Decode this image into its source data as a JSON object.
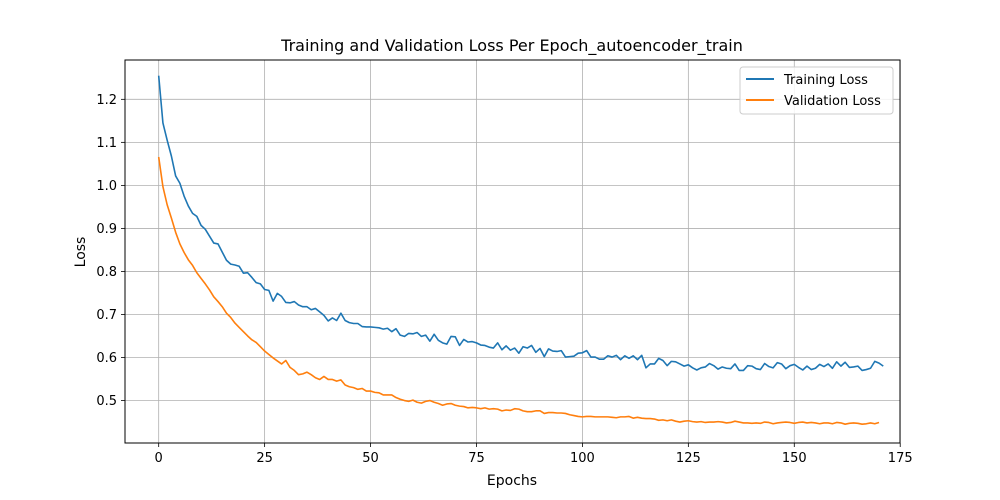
{
  "colors": {
    "training": "#1f77b4",
    "validation": "#ff7f0e",
    "grid": "#b0b0b0"
  },
  "chart_data": {
    "type": "line",
    "title": "Training and Validation Loss Per Epoch_autoencoder_train",
    "xlabel": "Epochs",
    "ylabel": "Loss",
    "xlim": [
      -7.95,
      174.95
    ],
    "ylim": [
      0.4013,
      1.2914
    ],
    "xticks": [
      0,
      25,
      50,
      75,
      100,
      125,
      150,
      175
    ],
    "yticks": [
      0.5,
      0.6,
      0.7,
      0.8,
      0.9,
      1.0,
      1.1,
      1.2
    ],
    "grid": true,
    "legend_position": "top-right",
    "series": [
      {
        "name": "Training Loss",
        "color": "#1f77b4",
        "values": [
          1.255,
          1.145,
          1.105,
          1.068,
          1.022,
          1.005,
          0.975,
          0.952,
          0.935,
          0.928,
          0.907,
          0.898,
          0.882,
          0.866,
          0.864,
          0.845,
          0.826,
          0.817,
          0.815,
          0.812,
          0.796,
          0.797,
          0.786,
          0.774,
          0.771,
          0.758,
          0.756,
          0.731,
          0.749,
          0.742,
          0.728,
          0.727,
          0.73,
          0.722,
          0.718,
          0.718,
          0.711,
          0.714,
          0.706,
          0.698,
          0.685,
          0.692,
          0.686,
          0.703,
          0.686,
          0.681,
          0.679,
          0.679,
          0.672,
          0.671,
          0.671,
          0.67,
          0.669,
          0.666,
          0.668,
          0.66,
          0.667,
          0.652,
          0.649,
          0.656,
          0.655,
          0.658,
          0.649,
          0.652,
          0.638,
          0.654,
          0.64,
          0.634,
          0.631,
          0.649,
          0.648,
          0.628,
          0.642,
          0.636,
          0.637,
          0.634,
          0.629,
          0.628,
          0.624,
          0.622,
          0.634,
          0.618,
          0.627,
          0.617,
          0.622,
          0.61,
          0.625,
          0.622,
          0.628,
          0.612,
          0.621,
          0.602,
          0.62,
          0.615,
          0.614,
          0.616,
          0.601,
          0.602,
          0.603,
          0.61,
          0.611,
          0.616,
          0.601,
          0.601,
          0.596,
          0.596,
          0.604,
          0.601,
          0.605,
          0.595,
          0.604,
          0.598,
          0.604,
          0.595,
          0.605,
          0.576,
          0.585,
          0.585,
          0.598,
          0.593,
          0.581,
          0.591,
          0.59,
          0.585,
          0.58,
          0.583,
          0.576,
          0.571,
          0.576,
          0.578,
          0.586,
          0.581,
          0.573,
          0.578,
          0.575,
          0.574,
          0.585,
          0.57,
          0.57,
          0.581,
          0.58,
          0.574,
          0.572,
          0.586,
          0.579,
          0.576,
          0.588,
          0.585,
          0.574,
          0.581,
          0.584,
          0.577,
          0.571,
          0.58,
          0.572,
          0.575,
          0.584,
          0.579,
          0.585,
          0.575,
          0.59,
          0.58,
          0.589,
          0.577,
          0.578,
          0.58,
          0.57,
          0.572,
          0.575,
          0.591,
          0.587,
          0.58
        ]
      },
      {
        "name": "Validation Loss",
        "color": "#ff7f0e",
        "values": [
          1.066,
          0.997,
          0.955,
          0.924,
          0.891,
          0.864,
          0.844,
          0.827,
          0.814,
          0.797,
          0.784,
          0.771,
          0.757,
          0.741,
          0.73,
          0.718,
          0.703,
          0.693,
          0.68,
          0.67,
          0.66,
          0.65,
          0.641,
          0.635,
          0.625,
          0.615,
          0.607,
          0.599,
          0.592,
          0.585,
          0.593,
          0.577,
          0.57,
          0.56,
          0.562,
          0.566,
          0.56,
          0.553,
          0.549,
          0.556,
          0.549,
          0.549,
          0.545,
          0.548,
          0.536,
          0.532,
          0.53,
          0.526,
          0.528,
          0.522,
          0.522,
          0.519,
          0.518,
          0.513,
          0.513,
          0.513,
          0.507,
          0.503,
          0.5,
          0.498,
          0.501,
          0.496,
          0.494,
          0.498,
          0.5,
          0.496,
          0.493,
          0.489,
          0.492,
          0.493,
          0.489,
          0.487,
          0.486,
          0.483,
          0.484,
          0.483,
          0.481,
          0.483,
          0.48,
          0.481,
          0.48,
          0.476,
          0.478,
          0.477,
          0.481,
          0.48,
          0.476,
          0.474,
          0.474,
          0.476,
          0.476,
          0.47,
          0.472,
          0.472,
          0.471,
          0.471,
          0.47,
          0.467,
          0.465,
          0.463,
          0.462,
          0.463,
          0.463,
          0.462,
          0.462,
          0.462,
          0.462,
          0.461,
          0.46,
          0.462,
          0.462,
          0.463,
          0.459,
          0.461,
          0.459,
          0.458,
          0.458,
          0.457,
          0.454,
          0.455,
          0.453,
          0.455,
          0.452,
          0.45,
          0.452,
          0.453,
          0.451,
          0.45,
          0.451,
          0.449,
          0.45,
          0.45,
          0.451,
          0.45,
          0.448,
          0.449,
          0.452,
          0.45,
          0.448,
          0.448,
          0.447,
          0.448,
          0.447,
          0.45,
          0.449,
          0.446,
          0.448,
          0.449,
          0.45,
          0.449,
          0.447,
          0.449,
          0.45,
          0.448,
          0.449,
          0.448,
          0.446,
          0.448,
          0.448,
          0.446,
          0.449,
          0.448,
          0.445,
          0.447,
          0.448,
          0.447,
          0.445,
          0.446,
          0.448,
          0.446,
          0.449
        ]
      }
    ]
  }
}
